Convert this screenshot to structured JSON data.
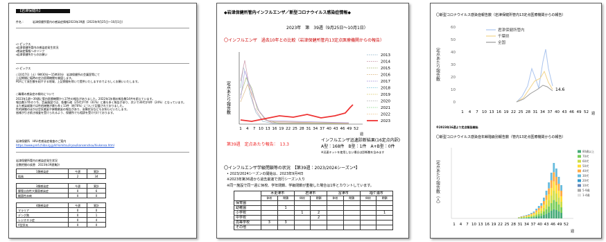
{
  "left_page": {
    "header": "【岩津保健所】",
    "subject_label": "件名：",
    "subject": "岩津保健所管内の感染症情報2023年39週（2023年9月25日～10月1日）",
    "toc": [
      "・トピックス",
      "・岩津保健所管内の感染症発生状況",
      "・感染症情報へのリンク",
      "・岩津保健所からのお願い"
    ],
    "topics_title": "・トピックス",
    "topics_text": [
      "○10月7日（土）9時30分～15時30分　岩津保健所の会議室等にて",
      "上記期間に臨時の定点医療機関を開設します。",
      "PDFにて発生数を紹介する地域、上記期間を除いて提供いたしますのでよろしくお願いいたします。"
    ],
    "flu_title": "○職場の感染症の傾向について",
    "flu_text": [
      "2023年1週～39週に管内医療機関から17件の報告がありました。2022年1年間の報告数14件を超えています。",
      "報告数17件のうち、会員施設では、各種行政（25代が7件（41%）と最も多く報告があり、次いで30代が4件（24%）となっています。",
      "また感染経路では性的接触が最も多く13件（約76%）について記載されておりました。",
      "性的接触のほかは空気感染や接触感染の報告があり、治療状況などもお知らせいたします。",
      "皆様が引き続き検査を受けられるよう、保健所でも相談を受け付けております。"
    ],
    "link_label": "岩津保健所　HIV・性感染症検査のご案内",
    "link_url": "https://www.pref.chiba.lg.jp/kf-kimitsu/iryou/kansenshou/hivkensa.html",
    "table_title": "岩津保健所管内の感染症発生状況",
    "table_note": "全数把握の疾患　2023年39週集計",
    "table_groups": [
      {
        "head": "1類感染症",
        "cols": [
          "今週",
          "累計"
        ],
        "rows": [
          [
            "結核",
            "2",
            "34"
          ]
        ]
      },
      {
        "head": "3類感染症",
        "cols": [
          "今週",
          "累計"
        ],
        "rows": [
          [
            "腸管出血性大腸菌感染症",
            "0",
            "6"
          ],
          [
            "細菌性赤痢",
            "0",
            "0"
          ]
        ]
      },
      {
        "head": "4類感染症",
        "cols": [
          "今週",
          "累計"
        ],
        "rows": [
          [
            "マラリア",
            "0",
            "0"
          ],
          [
            "デング熱",
            "0",
            "1"
          ],
          [
            "レジオネラ症",
            "0",
            "4"
          ],
          [
            "A型肝炎",
            "0",
            "0"
          ]
        ]
      }
    ]
  },
  "middle_page": {
    "title": "◆岩津保健所管内インフルエンザ／新型コロナウイルス感染症情報◆",
    "week": "2023年　第　39週（9月25日～10月1日）",
    "chart_title": "〇インフルエンザ　過去10年との比較（岩津保健所管内13定点医療機関からの報告）",
    "y_label": "定点あたり報告数",
    "x_ticks": [
      "1",
      "4",
      "7",
      "10",
      "13",
      "16",
      "19",
      "22",
      "25",
      "28",
      "31",
      "34",
      "37",
      "40",
      "43",
      "46",
      "49",
      "52"
    ],
    "x_unit": "週",
    "legend": [
      "2013",
      "2014",
      "2015",
      "2016",
      "2017",
      "2018",
      "2019",
      "2020",
      "2021",
      "2022",
      "2023"
    ],
    "current_report": "第39週　定点あたり報告：　13.3",
    "rapid_title": "インフルエンザ迅速診断結果(16定点内訳)",
    "rapid_counts": "A型：168件　B型：1件　A+B型：0件",
    "rapid_note": "※迅速キットを使用しない場合は診断数を含みます",
    "closure_title": "〇インフルエンザ学級閉鎖等の状況　【第39週：2023/2024シーズン*】",
    "closure_bullet": "• 2023/2024シーズンの開始は、2023年9月4日",
    "closure_note1": "※2023年第36週から過去最速で流行シーズン入り",
    "closure_note2": "※同一施設で同一週に休校、学年閉鎖、学級閉鎖が重複した場合は1件とカウントしています。",
    "table": {
      "cities": [
        "木更津市",
        "君津市",
        "富津市",
        "袖ケ浦市"
      ],
      "sub": [
        "休校",
        "閉鎖"
      ],
      "rows": [
        [
          "保育園",
          "",
          "",
          "",
          "",
          "",
          "",
          "",
          ""
        ],
        [
          "幼稚園",
          "",
          "1",
          "",
          "",
          "",
          "",
          "",
          ""
        ],
        [
          "小学校",
          "",
          "",
          "1",
          "2",
          "",
          "",
          "",
          "1"
        ],
        [
          "中学校",
          "",
          "",
          "",
          "2",
          "",
          "",
          "",
          ""
        ],
        [
          "高等学校",
          "3",
          "3",
          "",
          "",
          "",
          "",
          "",
          ""
        ],
        [
          "その他",
          "",
          "",
          "",
          "",
          "",
          "",
          "",
          ""
        ]
      ]
    }
  },
  "right_page": {
    "chart1_title": "〇新型コロナウイルス感染症報告数（岩津保健所管内13定点医療機関からの報告）",
    "chart1_y_label": "定点あたり報告数",
    "chart1_yticks": [
      "60",
      "50",
      "40",
      "30",
      "20",
      "10",
      "0"
    ],
    "chart1_legend": [
      "君津保健所管内",
      "千葉県",
      "全国"
    ],
    "chart1_value": "14.6",
    "x_ticks": [
      "1",
      "4",
      "7",
      "10",
      "13",
      "16",
      "19",
      "22",
      "25",
      "28",
      "31",
      "34",
      "37",
      "40",
      "43",
      "46",
      "49",
      "52"
    ],
    "x_unit": "週",
    "note": "※2023年16週より定点報告開始",
    "chart2_title": "〇新型コロナウイルス感染症年齢階級別報告数（管内13定点医療機関からの報告）",
    "chart2_y_label": "定点あたり報告数（人）",
    "chart2_x_ticks": [
      "1",
      "4",
      "7",
      "10",
      "13",
      "16",
      "19",
      "22",
      "25",
      "28",
      "31",
      "34",
      "37",
      "40",
      "43",
      "46",
      "49",
      "52"
    ],
    "chart2_x_unit": "週",
    "chart2_legend": [
      "80歳以上",
      "70代",
      "60代",
      "50代",
      "40代",
      "30代",
      "20代",
      "10代",
      "5-9歳",
      "1-4歳"
    ]
  }
}
